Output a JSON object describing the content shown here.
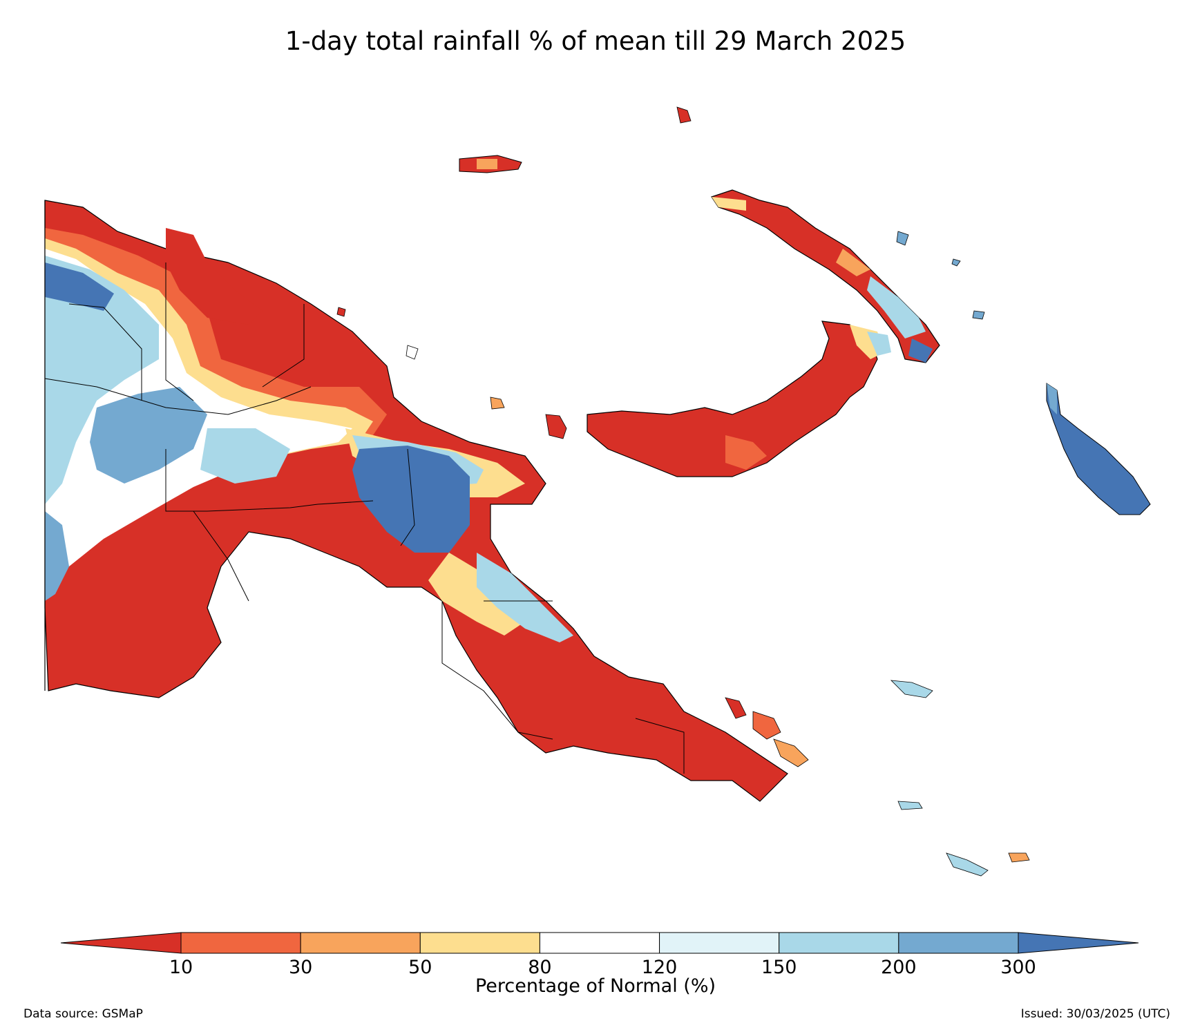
{
  "title": "1-day total rainfall % of mean till 29 March 2025",
  "colorbar": {
    "label": "Percentage of Normal (%)",
    "ticks": [
      "10",
      "30",
      "50",
      "80",
      "120",
      "150",
      "200",
      "300"
    ],
    "colors": [
      "#d73027",
      "#f0663f",
      "#f8a45c",
      "#fdde8f",
      "#ffffff",
      "#e1f3f8",
      "#a9d8e8",
      "#74a9d0",
      "#4575b4"
    ],
    "extend": "both"
  },
  "footer": {
    "source": "Data source: GSMaP",
    "issued": "Issued: 30/03/2025 (UTC)"
  }
}
